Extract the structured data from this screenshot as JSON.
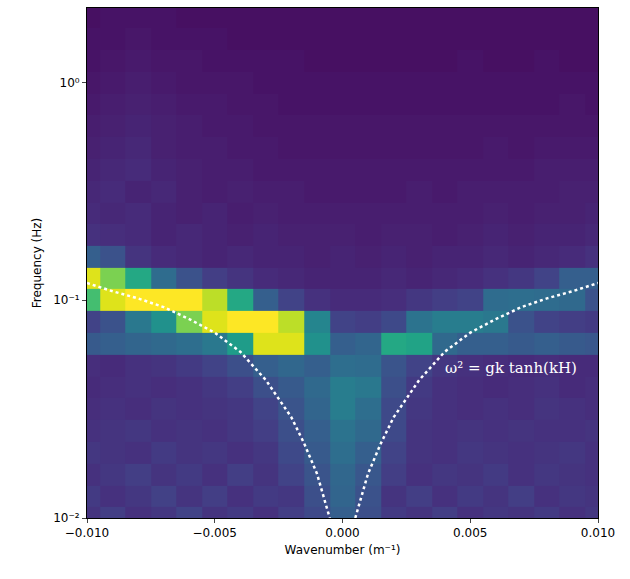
{
  "chart_data": {
    "type": "heatmap",
    "x_label": "Wavenumber (m⁻¹)",
    "y_label": "Frequency (Hz)",
    "log": "y",
    "grid": false,
    "color": "Viridis",
    "xlim": [
      -0.01,
      0.01
    ],
    "ylim": [
      0.01,
      2.2
    ],
    "xticks": [
      {
        "value": -0.01,
        "label": "−0.010"
      },
      {
        "value": -0.005,
        "label": "−0.005"
      },
      {
        "value": 0,
        "label": "0.000"
      },
      {
        "value": 0.005,
        "label": "0.005"
      },
      {
        "value": 0.01,
        "label": "0.010"
      }
    ],
    "yticks": [
      {
        "value": 0.01,
        "label": "10⁻²"
      },
      {
        "value": 0.1,
        "label": "10⁻¹"
      },
      {
        "value": 1,
        "label": "10⁰"
      }
    ],
    "zlim": [
      0,
      1
    ],
    "x": [
      -0.01,
      -0.009,
      -0.008,
      -0.007,
      -0.006,
      -0.005,
      -0.004,
      -0.003,
      -0.002,
      -0.001,
      0,
      0.001,
      0.002,
      0.003,
      0.004,
      0.005,
      0.006,
      0.007,
      0.008,
      0.009,
      0.01
    ],
    "y": [
      0.01,
      0.0126,
      0.0158,
      0.02,
      0.0251,
      0.0316,
      0.0398,
      0.05,
      0.0631,
      0.0794,
      0.1,
      0.126,
      0.158,
      0.2,
      0.251,
      0.316,
      0.398,
      0.5,
      0.631,
      0.794,
      1,
      1.26,
      1.58,
      2
    ],
    "cells": [
      [
        0.15,
        0.18,
        0.14,
        0.16,
        0.2,
        0.15,
        0.17,
        0.14,
        0.18,
        0.22,
        0.3,
        0.24,
        0.17,
        0.15,
        0.18,
        0.14,
        0.16,
        0.15,
        0.17,
        0.14,
        0.16
      ],
      [
        0.17,
        0.14,
        0.16,
        0.19,
        0.15,
        0.18,
        0.14,
        0.17,
        0.16,
        0.24,
        0.32,
        0.25,
        0.15,
        0.18,
        0.14,
        0.17,
        0.15,
        0.18,
        0.14,
        0.16,
        0.15
      ],
      [
        0.14,
        0.16,
        0.18,
        0.15,
        0.17,
        0.14,
        0.18,
        0.15,
        0.2,
        0.26,
        0.33,
        0.27,
        0.18,
        0.14,
        0.16,
        0.15,
        0.17,
        0.14,
        0.16,
        0.15,
        0.14
      ],
      [
        0.16,
        0.15,
        0.14,
        0.17,
        0.15,
        0.16,
        0.14,
        0.16,
        0.22,
        0.28,
        0.36,
        0.3,
        0.2,
        0.15,
        0.14,
        0.16,
        0.15,
        0.14,
        0.15,
        0.16,
        0.14
      ],
      [
        0.14,
        0.15,
        0.16,
        0.14,
        0.15,
        0.14,
        0.16,
        0.18,
        0.24,
        0.3,
        0.38,
        0.34,
        0.22,
        0.15,
        0.14,
        0.15,
        0.14,
        0.15,
        0.14,
        0.14,
        0.15
      ],
      [
        0.13,
        0.14,
        0.13,
        0.15,
        0.14,
        0.15,
        0.16,
        0.2,
        0.26,
        0.32,
        0.42,
        0.36,
        0.22,
        0.16,
        0.14,
        0.13,
        0.14,
        0.13,
        0.15,
        0.14,
        0.13
      ],
      [
        0.12,
        0.13,
        0.14,
        0.13,
        0.14,
        0.16,
        0.18,
        0.24,
        0.28,
        0.34,
        0.42,
        0.4,
        0.24,
        0.17,
        0.14,
        0.13,
        0.12,
        0.13,
        0.14,
        0.12,
        0.13
      ],
      [
        0.13,
        0.12,
        0.14,
        0.15,
        0.17,
        0.2,
        0.24,
        0.3,
        0.33,
        0.3,
        0.36,
        0.35,
        0.26,
        0.2,
        0.16,
        0.14,
        0.13,
        0.12,
        0.13,
        0.12,
        0.12
      ],
      [
        0.28,
        0.3,
        0.32,
        0.34,
        0.36,
        0.4,
        0.55,
        0.95,
        0.95,
        0.5,
        0.3,
        0.32,
        0.6,
        0.58,
        0.34,
        0.3,
        0.3,
        0.28,
        0.3,
        0.28,
        0.27
      ],
      [
        0.2,
        0.25,
        0.4,
        0.5,
        0.8,
        0.95,
        1,
        1,
        0.9,
        0.45,
        0.2,
        0.18,
        0.22,
        0.38,
        0.42,
        0.42,
        0.4,
        0.25,
        0.2,
        0.18,
        0.17
      ],
      [
        0.7,
        0.95,
        1,
        1,
        1,
        0.9,
        0.6,
        0.3,
        0.2,
        0.14,
        0.12,
        0.12,
        0.13,
        0.16,
        0.18,
        0.2,
        0.35,
        0.36,
        0.35,
        0.34,
        0.25
      ],
      [
        0.95,
        0.8,
        0.6,
        0.35,
        0.25,
        0.18,
        0.15,
        0.12,
        0.11,
        0.1,
        0.1,
        0.1,
        0.11,
        0.1,
        0.11,
        0.12,
        0.14,
        0.16,
        0.2,
        0.3,
        0.3
      ],
      [
        0.3,
        0.25,
        0.15,
        0.12,
        0.11,
        0.1,
        0.11,
        0.1,
        0.1,
        0.09,
        0.1,
        0.09,
        0.1,
        0.09,
        0.1,
        0.1,
        0.11,
        0.1,
        0.11,
        0.12,
        0.14
      ],
      [
        0.14,
        0.13,
        0.12,
        0.1,
        0.11,
        0.1,
        0.09,
        0.1,
        0.09,
        0.09,
        0.09,
        0.08,
        0.09,
        0.09,
        0.08,
        0.09,
        0.1,
        0.09,
        0.1,
        0.1,
        0.11
      ],
      [
        0.12,
        0.11,
        0.12,
        0.1,
        0.09,
        0.1,
        0.08,
        0.09,
        0.08,
        0.08,
        0.08,
        0.08,
        0.08,
        0.08,
        0.08,
        0.08,
        0.09,
        0.08,
        0.09,
        0.09,
        0.1
      ],
      [
        0.11,
        0.12,
        0.1,
        0.11,
        0.09,
        0.08,
        0.09,
        0.08,
        0.08,
        0.07,
        0.07,
        0.07,
        0.07,
        0.08,
        0.07,
        0.08,
        0.08,
        0.08,
        0.08,
        0.09,
        0.09
      ],
      [
        0.1,
        0.11,
        0.12,
        0.1,
        0.09,
        0.08,
        0.08,
        0.07,
        0.07,
        0.07,
        0.07,
        0.07,
        0.07,
        0.07,
        0.07,
        0.07,
        0.07,
        0.07,
        0.08,
        0.08,
        0.08
      ],
      [
        0.09,
        0.1,
        0.11,
        0.09,
        0.08,
        0.08,
        0.07,
        0.07,
        0.06,
        0.06,
        0.06,
        0.06,
        0.06,
        0.06,
        0.06,
        0.06,
        0.07,
        0.06,
        0.07,
        0.07,
        0.07
      ],
      [
        0.08,
        0.09,
        0.1,
        0.09,
        0.08,
        0.07,
        0.07,
        0.06,
        0.06,
        0.06,
        0.06,
        0.06,
        0.06,
        0.06,
        0.06,
        0.06,
        0.06,
        0.06,
        0.06,
        0.06,
        0.06
      ],
      [
        0.07,
        0.08,
        0.09,
        0.08,
        0.07,
        0.07,
        0.06,
        0.06,
        0.05,
        0.05,
        0.05,
        0.05,
        0.05,
        0.05,
        0.05,
        0.05,
        0.05,
        0.05,
        0.05,
        0.06,
        0.05
      ],
      [
        0.06,
        0.07,
        0.08,
        0.07,
        0.06,
        0.06,
        0.06,
        0.05,
        0.05,
        0.05,
        0.05,
        0.05,
        0.05,
        0.05,
        0.05,
        0.05,
        0.05,
        0.05,
        0.05,
        0.05,
        0.05
      ],
      [
        0.05,
        0.06,
        0.07,
        0.06,
        0.06,
        0.05,
        0.05,
        0.05,
        0.05,
        0.04,
        0.04,
        0.04,
        0.04,
        0.04,
        0.04,
        0.05,
        0.04,
        0.04,
        0.05,
        0.04,
        0.04
      ],
      [
        0.05,
        0.05,
        0.06,
        0.05,
        0.05,
        0.05,
        0.04,
        0.04,
        0.04,
        0.04,
        0.04,
        0.04,
        0.04,
        0.04,
        0.04,
        0.04,
        0.04,
        0.04,
        0.04,
        0.04,
        0.04
      ],
      [
        0.04,
        0.05,
        0.05,
        0.05,
        0.04,
        0.04,
        0.04,
        0.04,
        0.04,
        0.04,
        0.04,
        0.04,
        0.04,
        0.04,
        0.04,
        0.04,
        0.04,
        0.04,
        0.04,
        0.04,
        0.04
      ]
    ],
    "series": [
      {
        "type": "line",
        "color": "#ffffff",
        "line_style": "dot",
        "x": [
          -0.01,
          -0.009,
          -0.008,
          -0.007,
          -0.006,
          -0.005,
          -0.004,
          -0.003,
          -0.002,
          -0.0015,
          -0.001,
          -0.0006,
          -0.0005
        ],
        "values": [
          0.12,
          0.11,
          0.102,
          0.093,
          0.082,
          0.071,
          0.058,
          0.043,
          0.029,
          0.022,
          0.016,
          0.011,
          0.01
        ]
      },
      {
        "type": "line",
        "color": "#ffffff",
        "line_style": "dot",
        "x": [
          0.0005,
          0.0006,
          0.001,
          0.0015,
          0.002,
          0.003,
          0.004,
          0.005,
          0.006,
          0.007,
          0.008,
          0.009,
          0.01
        ],
        "values": [
          0.01,
          0.011,
          0.016,
          0.022,
          0.029,
          0.043,
          0.058,
          0.071,
          0.082,
          0.093,
          0.102,
          0.11,
          0.12
        ]
      }
    ],
    "annotations": [
      {
        "text": "ω² = gk tanh(kH)",
        "x": 0.0066,
        "y": 0.049
      }
    ]
  }
}
